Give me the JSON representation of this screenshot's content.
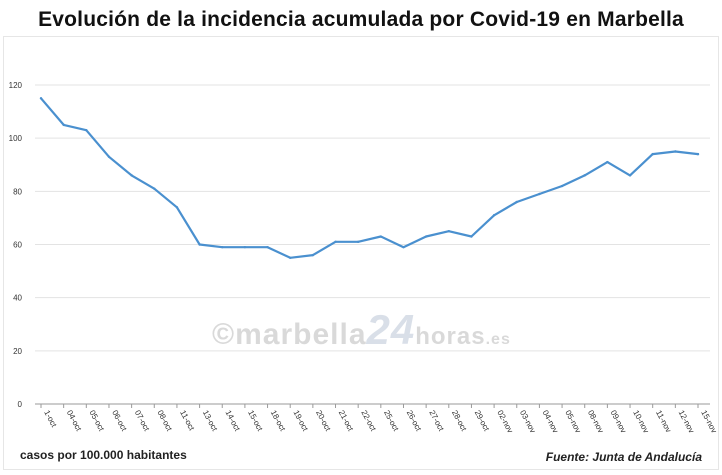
{
  "title": "Evolución de la incidencia acumulada por Covid-19 en Marbella",
  "footnote_left": "casos por 100.000 habitantes",
  "source": "Fuente: Junta de Andalucía",
  "watermark": {
    "copyright": "©",
    "brand": "marbella",
    "number": "24",
    "suffix": "horas",
    "tld": ".es"
  },
  "colors": {
    "line": "#4a90cf",
    "grid": "#e3e3e3",
    "axis": "#9a9a9a",
    "tick_text": "#333333"
  },
  "chart_data": {
    "type": "line",
    "title": "Evolución de la incidencia acumulada por Covid-19 en Marbella",
    "xlabel": "",
    "ylabel": "",
    "ylim": [
      0,
      120
    ],
    "yticks": [
      0,
      20,
      40,
      60,
      80,
      100,
      120
    ],
    "grid": true,
    "categories": [
      "1-oct",
      "04-oct",
      "05-oct",
      "06-oct",
      "07-oct",
      "08-oct",
      "11-oct",
      "13-oct",
      "14-oct",
      "15-oct",
      "18-oct",
      "19-oct",
      "20-oct",
      "21-oct",
      "22-oct",
      "25-oct",
      "26-oct",
      "27-oct",
      "28-oct",
      "29-oct",
      "02-nov",
      "03-nov",
      "04-nov",
      "05-nov",
      "08-nov",
      "09-nov",
      "10-nov",
      "11-nov",
      "12-nov",
      "15-nov"
    ],
    "series": [
      {
        "values": [
          115,
          105,
          103,
          93,
          86,
          81,
          74,
          60,
          59,
          59,
          59,
          55,
          56,
          61,
          61,
          63,
          59,
          63,
          65,
          63,
          71,
          76,
          79,
          82,
          86,
          91,
          86,
          94,
          95,
          94
        ]
      }
    ]
  }
}
